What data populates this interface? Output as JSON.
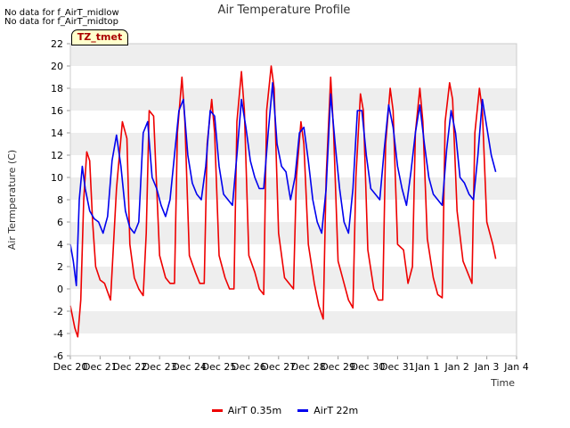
{
  "notes": [
    "No data for f_AirT_midlow",
    "No data for f_AirT_midtop"
  ],
  "badge": "TZ_tmet",
  "chart_data": {
    "type": "line",
    "title": "Air Temperature Profile",
    "xlabel": "Time",
    "ylabel": "Air Termperature (C)",
    "ylim": [
      -6,
      22
    ],
    "yticks": [
      -6,
      -4,
      -2,
      0,
      2,
      4,
      6,
      8,
      10,
      12,
      14,
      16,
      18,
      20,
      22
    ],
    "xlim": [
      0,
      15
    ],
    "xtick_labels": [
      "Dec 20",
      "Dec 21",
      "Dec 22",
      "Dec 23",
      "Dec 24",
      "Dec 25",
      "Dec 26",
      "Dec 27",
      "Dec 28",
      "Dec 29",
      "Dec 30",
      "Dec 31",
      "Jan 1",
      "Jan 2",
      "Jan 3",
      "Jan 4"
    ],
    "grid": "horizontal bands",
    "legend_position": "bottom",
    "series": [
      {
        "name": "AirT 0.35m",
        "color": "#ee0000",
        "x": [
          0.0,
          0.15,
          0.25,
          0.35,
          0.45,
          0.55,
          0.65,
          0.75,
          0.85,
          1.0,
          1.15,
          1.35,
          1.55,
          1.75,
          1.9,
          2.0,
          2.15,
          2.3,
          2.45,
          2.55,
          2.65,
          2.8,
          3.0,
          3.2,
          3.35,
          3.5,
          3.6,
          3.75,
          3.85,
          4.0,
          4.2,
          4.35,
          4.5,
          4.6,
          4.75,
          4.85,
          5.0,
          5.2,
          5.35,
          5.5,
          5.6,
          5.75,
          5.85,
          6.0,
          6.2,
          6.35,
          6.5,
          6.6,
          6.75,
          6.85,
          7.0,
          7.2,
          7.35,
          7.5,
          7.6,
          7.75,
          7.85,
          8.0,
          8.2,
          8.35,
          8.5,
          8.6,
          8.75,
          8.85,
          9.0,
          9.2,
          9.35,
          9.5,
          9.6,
          9.75,
          9.85,
          10.0,
          10.2,
          10.35,
          10.5,
          10.6,
          10.75,
          10.85,
          11.0,
          11.2,
          11.35,
          11.5,
          11.6,
          11.75,
          11.85,
          12.0,
          12.2,
          12.35,
          12.5,
          12.6,
          12.75,
          12.85,
          13.0,
          13.2,
          13.35,
          13.5,
          13.6,
          13.75,
          13.85,
          14.0,
          14.2,
          14.3
        ],
        "y": [
          -1.5,
          -3.5,
          -4.3,
          -1.0,
          8.0,
          12.3,
          11.5,
          6.0,
          2.0,
          0.8,
          0.5,
          -1.0,
          9.0,
          15.0,
          13.5,
          4.0,
          1.0,
          0.0,
          -0.6,
          5.0,
          16.0,
          15.5,
          3.0,
          1.0,
          0.5,
          0.5,
          14.0,
          19.0,
          15.0,
          3.0,
          1.5,
          0.5,
          0.5,
          13.0,
          17.0,
          14.0,
          3.0,
          1.0,
          0.0,
          0.0,
          15.0,
          19.5,
          16.0,
          3.0,
          1.5,
          0.0,
          -0.5,
          16.0,
          20.0,
          18.0,
          5.0,
          1.0,
          0.5,
          0.0,
          10.0,
          15.0,
          13.0,
          4.0,
          0.5,
          -1.5,
          -2.7,
          10.0,
          19.0,
          14.0,
          2.5,
          0.5,
          -1.0,
          -1.7,
          10.0,
          17.5,
          16.0,
          3.5,
          0.0,
          -1.0,
          -1.0,
          13.0,
          18.0,
          16.0,
          4.0,
          3.5,
          0.5,
          2.0,
          14.0,
          18.0,
          15.0,
          4.5,
          1.0,
          -0.5,
          -0.8,
          15.0,
          18.5,
          17.0,
          7.0,
          2.5,
          1.5,
          0.5,
          14.0,
          18.0,
          16.0,
          6.0,
          4.0,
          2.7
        ]
      },
      {
        "name": "AirT 22m",
        "color": "#0000ee",
        "x": [
          0.0,
          0.1,
          0.2,
          0.3,
          0.4,
          0.5,
          0.65,
          0.8,
          0.95,
          1.1,
          1.25,
          1.4,
          1.55,
          1.7,
          1.85,
          2.0,
          2.15,
          2.3,
          2.45,
          2.6,
          2.75,
          2.9,
          3.05,
          3.2,
          3.35,
          3.5,
          3.65,
          3.8,
          3.95,
          4.1,
          4.25,
          4.4,
          4.55,
          4.7,
          4.85,
          5.0,
          5.15,
          5.3,
          5.45,
          5.6,
          5.75,
          5.9,
          6.05,
          6.2,
          6.35,
          6.5,
          6.65,
          6.8,
          6.95,
          7.1,
          7.25,
          7.4,
          7.55,
          7.7,
          7.85,
          8.0,
          8.15,
          8.3,
          8.45,
          8.6,
          8.75,
          8.9,
          9.05,
          9.2,
          9.35,
          9.5,
          9.65,
          9.8,
          9.95,
          10.1,
          10.25,
          10.4,
          10.55,
          10.7,
          10.85,
          11.0,
          11.15,
          11.3,
          11.45,
          11.6,
          11.75,
          11.9,
          12.05,
          12.2,
          12.35,
          12.5,
          12.65,
          12.8,
          12.95,
          13.1,
          13.25,
          13.4,
          13.55,
          13.7,
          13.85,
          14.0,
          14.15,
          14.3
        ],
        "y": [
          4.0,
          2.5,
          0.3,
          8.0,
          11.0,
          9.0,
          7.0,
          6.3,
          6.0,
          5.0,
          6.5,
          11.5,
          13.8,
          11.0,
          7.0,
          5.5,
          5.0,
          6.0,
          14.0,
          15.0,
          10.0,
          9.0,
          7.5,
          6.5,
          8.0,
          12.0,
          16.0,
          17.0,
          12.0,
          9.5,
          8.5,
          8.0,
          11.0,
          16.0,
          15.5,
          11.0,
          8.5,
          8.0,
          7.5,
          12.0,
          17.0,
          14.5,
          11.5,
          10.0,
          9.0,
          9.0,
          14.0,
          18.5,
          13.0,
          11.0,
          10.5,
          8.0,
          10.0,
          14.0,
          14.5,
          11.5,
          8.0,
          6.0,
          5.0,
          9.0,
          17.5,
          13.0,
          9.0,
          6.0,
          5.0,
          9.0,
          16.0,
          16.0,
          12.0,
          9.0,
          8.5,
          8.0,
          12.5,
          16.5,
          14.5,
          11.0,
          9.0,
          7.5,
          10.5,
          14.0,
          16.5,
          13.0,
          10.0,
          8.5,
          8.0,
          7.5,
          12.5,
          16.0,
          14.0,
          10.0,
          9.5,
          8.5,
          8.0,
          12.0,
          17.0,
          14.5,
          12.0,
          10.5
        ]
      }
    ]
  }
}
